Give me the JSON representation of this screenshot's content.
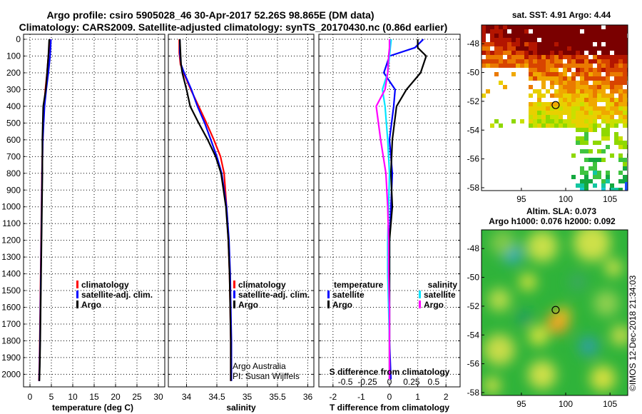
{
  "header": {
    "title_line1": "Argo profile: csiro 5905028_46 30-Apr-2017 52.26S 98.865E (DM data)",
    "title_line2": "Climatology: CARS2009. Satellite-adjusted climatology: synTS_20170430.nc (0.86d earlier)"
  },
  "credits": {
    "line1": "Argo Australia",
    "line2": "PI: Susan Wijffels"
  },
  "watermark": "©IMOS 12-Dec-2018 21:34:03",
  "colors": {
    "climatology": "#ff0000",
    "satellite": "#0000ff",
    "argo": "#000000",
    "sat_salinity": "#00e5ff",
    "argo_salinity_diff": "#ff00ff"
  },
  "chart_data": [
    {
      "type": "line",
      "name": "temperature",
      "xlabel": "temperature (deg C)",
      "ylabel": "",
      "xlim": [
        -1.5,
        31.5
      ],
      "ylim": [
        2075,
        -30
      ],
      "xticks": [
        0,
        5,
        10,
        15,
        20,
        25,
        30
      ],
      "xtick_labels": [
        "0",
        "5",
        "10",
        "15",
        "20",
        "25",
        "30"
      ],
      "yticks": [
        0,
        100,
        200,
        300,
        400,
        500,
        600,
        700,
        800,
        900,
        1000,
        1100,
        1200,
        1300,
        1400,
        1500,
        1600,
        1700,
        1800,
        1900,
        2000
      ],
      "ytick_labels": [
        "0",
        "100",
        "200",
        "300",
        "400",
        "500",
        "600",
        "700",
        "800",
        "900",
        "1000",
        "1100",
        "1200",
        "1300",
        "1400",
        "1500",
        "1600",
        "1700",
        "1800",
        "1900",
        "2000"
      ],
      "legend": [
        "climatology",
        "satellite-adj. clim.",
        "Argo"
      ],
      "series": [
        {
          "name": "climatology",
          "color": "#ff0000",
          "x": [
            4.6,
            4.5,
            4.3,
            4.0,
            3.6,
            3.3,
            3.1,
            3.0,
            2.8,
            2.7,
            2.6,
            2.5,
            2.4,
            2.3,
            2.2,
            2.1
          ],
          "y": [
            0,
            50,
            100,
            200,
            300,
            400,
            500,
            600,
            800,
            1000,
            1200,
            1400,
            1600,
            1800,
            1950,
            2040
          ]
        },
        {
          "name": "satellite-adj. clim.",
          "color": "#0000ff",
          "x": [
            4.9,
            4.8,
            4.7,
            4.3,
            3.8,
            3.4,
            3.2,
            3.0,
            2.85,
            2.75,
            2.65,
            2.55,
            2.45,
            2.35,
            2.25,
            2.15
          ],
          "y": [
            0,
            50,
            100,
            200,
            300,
            400,
            500,
            600,
            800,
            1000,
            1200,
            1400,
            1600,
            1800,
            1950,
            2040
          ]
        },
        {
          "name": "Argo",
          "color": "#000000",
          "x": [
            4.5,
            4.4,
            4.3,
            4.0,
            3.7,
            3.1,
            3.0,
            2.9,
            2.9,
            2.8,
            2.7,
            2.6,
            2.5,
            2.4,
            2.3,
            2.2
          ],
          "y": [
            0,
            50,
            100,
            200,
            300,
            400,
            500,
            600,
            800,
            1000,
            1200,
            1400,
            1600,
            1800,
            1950,
            2040
          ]
        }
      ]
    },
    {
      "type": "line",
      "name": "salinity",
      "xlabel": "salinity",
      "xlim": [
        33.7,
        36.1
      ],
      "ylim": [
        2075,
        -30
      ],
      "xticks": [
        34,
        34.5,
        35,
        35.5,
        36
      ],
      "xtick_labels": [
        "34",
        "34.5",
        "35",
        "35.5",
        "36"
      ],
      "legend": [
        "climatology",
        "satellite-adj. clim.",
        "Argo"
      ],
      "series": [
        {
          "name": "climatology",
          "color": "#ff0000",
          "x": [
            33.88,
            33.88,
            33.9,
            33.95,
            34.07,
            34.2,
            34.33,
            34.45,
            34.56,
            34.62,
            34.66,
            34.69,
            34.71,
            34.72,
            34.73,
            34.73
          ],
          "y": [
            0,
            80,
            150,
            200,
            300,
            400,
            500,
            600,
            700,
            800,
            1000,
            1200,
            1400,
            1600,
            1800,
            2040
          ]
        },
        {
          "name": "satellite-adj. clim.",
          "color": "#0000ff",
          "x": [
            33.89,
            33.89,
            33.91,
            33.96,
            34.08,
            34.18,
            34.3,
            34.4,
            34.5,
            34.58,
            34.66,
            34.7,
            34.72,
            34.73,
            34.74,
            34.74
          ],
          "y": [
            0,
            80,
            150,
            200,
            300,
            400,
            500,
            600,
            700,
            800,
            1000,
            1200,
            1400,
            1600,
            1800,
            2040
          ]
        },
        {
          "name": "Argo",
          "color": "#000000",
          "x": [
            33.89,
            33.9,
            33.91,
            33.93,
            34.0,
            34.06,
            34.2,
            34.35,
            34.48,
            34.57,
            34.65,
            34.69,
            34.71,
            34.72,
            34.73,
            34.73
          ],
          "y": [
            0,
            80,
            150,
            200,
            300,
            400,
            500,
            600,
            700,
            800,
            1000,
            1200,
            1400,
            1600,
            1800,
            2040
          ]
        }
      ]
    },
    {
      "type": "line",
      "name": "difference from climatology",
      "xlabel": "T difference from climatology",
      "top_label": "S difference from climatology",
      "xlim": [
        -2.5,
        2.5
      ],
      "ylim": [
        2075,
        -30
      ],
      "xticks": [
        -2,
        -1,
        0,
        1,
        2
      ],
      "xtick_labels": [
        "-2",
        "-1",
        "0",
        "1",
        "2"
      ],
      "s_ticks": [
        -0.5,
        -0.25,
        0,
        0.25,
        0.5
      ],
      "s_tick_labels": [
        "-0.5",
        "-0.25",
        "0",
        "0.25",
        "0.5"
      ],
      "legend_temperature": {
        "title": "temperature",
        "items": [
          "satellite",
          "Argo"
        ]
      },
      "legend_salinity": {
        "title": "salinity",
        "items": [
          "satellite",
          "Argo"
        ]
      },
      "series": [
        {
          "name": "satellite T",
          "color": "#0000ff",
          "x": [
            1.2,
            0.9,
            0.0,
            -0.2,
            0.2,
            0.15,
            0.0,
            0.1,
            0.05,
            0.0,
            0.0,
            0.0,
            0.0,
            0.05
          ],
          "y": [
            0,
            50,
            100,
            200,
            300,
            400,
            600,
            800,
            1000,
            1200,
            1400,
            1600,
            1800,
            2030
          ]
        },
        {
          "name": "Argo T",
          "color": "#000000",
          "x": [
            1.0,
            1.0,
            1.3,
            1.1,
            0.6,
            0.25,
            0.1,
            0.05,
            0.1,
            0.0,
            0.0,
            0.0,
            0.0,
            0.0
          ],
          "y": [
            0,
            50,
            100,
            200,
            300,
            400,
            600,
            800,
            1000,
            1200,
            1400,
            1600,
            1800,
            2030
          ]
        },
        {
          "name": "satellite S",
          "color": "#00e5ff",
          "x": [
            0.02,
            0.01,
            0.0,
            -0.02,
            -0.08,
            -0.05,
            -0.02,
            0.0,
            -0.01,
            -0.02,
            -0.02,
            -0.01,
            0.0,
            0.0
          ],
          "y": [
            0,
            50,
            100,
            200,
            300,
            400,
            600,
            800,
            1000,
            1200,
            1400,
            1600,
            1800,
            2030
          ]
        },
        {
          "name": "Argo S",
          "color": "#ff00ff",
          "x": [
            0.0,
            0.0,
            -0.01,
            -0.02,
            -0.05,
            -0.15,
            -0.1,
            -0.04,
            -0.02,
            -0.01,
            -0.01,
            0.0,
            0.0,
            0.0
          ],
          "y": [
            0,
            50,
            100,
            200,
            300,
            400,
            600,
            800,
            1000,
            1200,
            1400,
            1600,
            1800,
            2030
          ]
        }
      ]
    },
    {
      "type": "heatmap",
      "name": "satellite SST map",
      "title": "sat. SST: 4.91  Argo: 4.44",
      "xlim": [
        90.5,
        107
      ],
      "ylim": [
        -58.2,
        -46.7
      ],
      "xticks": [
        95,
        100,
        105
      ],
      "xtick_labels": [
        "95",
        "100",
        "105"
      ],
      "yticks": [
        -48,
        -50,
        -52,
        -54,
        -56,
        -58
      ],
      "ytick_labels": [
        "-48",
        "-50",
        "-52",
        "-54",
        "-56",
        "-58"
      ],
      "float_position": {
        "lon": 98.865,
        "lat": -52.26
      }
    },
    {
      "type": "heatmap",
      "name": "altimetry SLA map",
      "title": "Altim. SLA: 0.073",
      "subtitle": "Argo h1000: 0.076  h2000: 0.092",
      "xlim": [
        90.5,
        107
      ],
      "ylim": [
        -58.2,
        -46.7
      ],
      "xticks": [
        95,
        100,
        105
      ],
      "xtick_labels": [
        "95",
        "100",
        "105"
      ],
      "yticks": [
        -48,
        -50,
        -52,
        -54,
        -56,
        -58
      ],
      "ytick_labels": [
        "-48",
        "-50",
        "-52",
        "-54",
        "-56",
        "-58"
      ],
      "float_position": {
        "lon": 98.865,
        "lat": -52.26
      }
    }
  ]
}
